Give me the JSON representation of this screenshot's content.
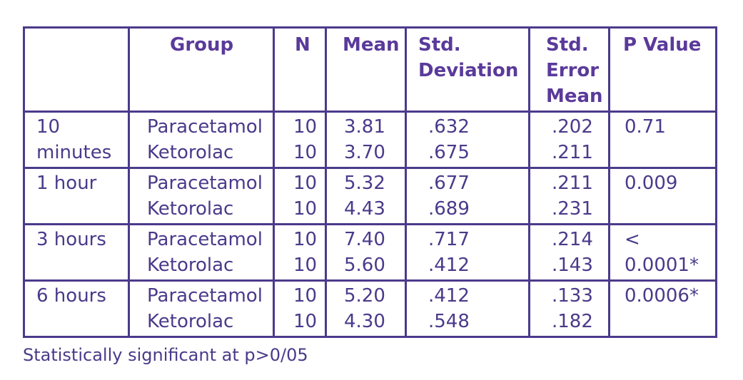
{
  "table": {
    "headers": {
      "time": "",
      "group": "Group",
      "n": "N",
      "mean": "Mean",
      "std_line1": "Std.",
      "std_line2": "Deviation",
      "sem_line1": "Std.",
      "sem_line2": "Error",
      "sem_line3": "Mean",
      "p": "P Value"
    },
    "rows": [
      {
        "time_line1": "10",
        "time_line2": "minutes",
        "groups": [
          "Paracetamol",
          "Ketorolac"
        ],
        "n": [
          "10",
          "10"
        ],
        "mean": [
          "3.81",
          "3.70"
        ],
        "std": [
          ".632",
          ".675"
        ],
        "sem": [
          ".202",
          ".211"
        ],
        "p_line1": "0.71",
        "p_line2": ""
      },
      {
        "time_line1": "1 hour",
        "time_line2": "",
        "groups": [
          "Paracetamol",
          "Ketorolac"
        ],
        "n": [
          "10",
          "10"
        ],
        "mean": [
          "5.32",
          "4.43"
        ],
        "std": [
          ".677",
          ".689"
        ],
        "sem": [
          ".211",
          ".231"
        ],
        "p_line1": "0.009",
        "p_line2": ""
      },
      {
        "time_line1": "3 hours",
        "time_line2": "",
        "groups": [
          "Paracetamol",
          "Ketorolac"
        ],
        "n": [
          "10",
          "10"
        ],
        "mean": [
          "7.40",
          "5.60"
        ],
        "std": [
          ".717",
          ".412"
        ],
        "sem": [
          ".214",
          ".143"
        ],
        "p_line1": "<",
        "p_line2": "0.0001*"
      },
      {
        "time_line1": "6 hours",
        "time_line2": "",
        "groups": [
          "Paracetamol",
          "Ketorolac"
        ],
        "n": [
          "10",
          "10"
        ],
        "mean": [
          "5.20",
          "4.30"
        ],
        "std": [
          ".412",
          ".548"
        ],
        "sem": [
          ".133",
          ".182"
        ],
        "p_line1": "0.0006*",
        "p_line2": ""
      }
    ]
  },
  "footnote": "Statistically significant at p>0/05",
  "colors": {
    "border": "#4b3a8b",
    "text": "#4a3a8a",
    "header": "#5a3a9a"
  }
}
